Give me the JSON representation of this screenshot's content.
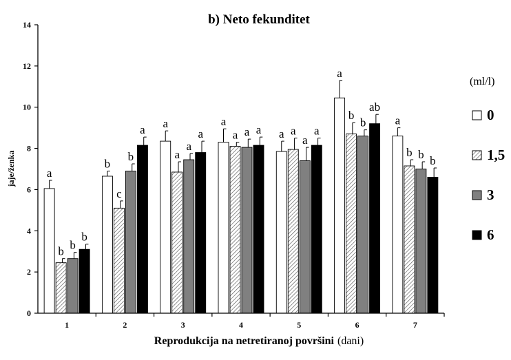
{
  "chart_data": {
    "type": "bar",
    "title": "b) Neto fekunditet",
    "ylabel": "jaje/ženka",
    "xlabel_bold": "Reprodukcija na netretiranoj površini",
    "xlabel_unit": "(dani)",
    "ylim": [
      0,
      14
    ],
    "yticks": [
      "0",
      "2",
      "4",
      "6",
      "8",
      "10",
      "12",
      "14"
    ],
    "categories": [
      "1",
      "2",
      "3",
      "4",
      "5",
      "6",
      "7"
    ],
    "legend_title": "(ml/l)",
    "legend_position": "right",
    "grid": false,
    "series": [
      {
        "name": "0",
        "color": "#ffffff",
        "pattern": "white",
        "values": [
          6.05,
          6.65,
          8.35,
          8.3,
          7.85,
          10.45,
          8.6
        ],
        "errors": [
          0.4,
          0.25,
          0.5,
          0.65,
          0.5,
          0.85,
          0.4
        ],
        "letters": [
          "a",
          "b",
          "a",
          "a",
          "a",
          "a",
          "a"
        ]
      },
      {
        "name": "1,5",
        "color": "#ffffff",
        "pattern": "hatch",
        "values": [
          2.45,
          5.1,
          6.85,
          8.1,
          7.95,
          8.7,
          7.15
        ],
        "errors": [
          0.2,
          0.35,
          0.5,
          0.2,
          0.55,
          0.55,
          0.3
        ],
        "letters": [
          "b",
          "c",
          "a",
          "a",
          "a",
          "b",
          "b"
        ]
      },
      {
        "name": "3",
        "color": "#808080",
        "pattern": "gray",
        "values": [
          2.65,
          6.9,
          7.45,
          8.05,
          7.4,
          8.6,
          7.0
        ],
        "errors": [
          0.3,
          0.35,
          0.3,
          0.4,
          0.65,
          0.3,
          0.35
        ],
        "letters": [
          "b",
          "b",
          "a",
          "a",
          "a",
          "b",
          "b"
        ]
      },
      {
        "name": "6",
        "color": "#000000",
        "pattern": "black",
        "values": [
          3.1,
          8.15,
          7.8,
          8.15,
          8.15,
          9.2,
          6.6
        ],
        "errors": [
          0.25,
          0.4,
          0.55,
          0.4,
          0.35,
          0.45,
          0.45
        ],
        "letters": [
          "b",
          "a",
          "a",
          "a",
          "a",
          "ab",
          "b"
        ]
      }
    ]
  }
}
